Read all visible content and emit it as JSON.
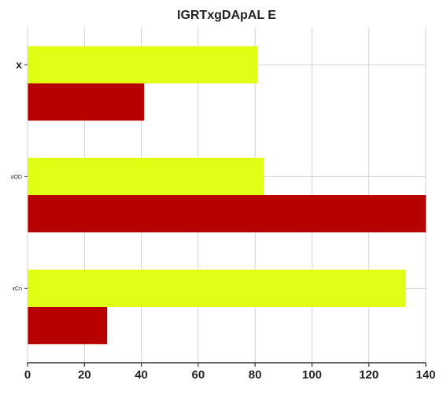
{
  "chart_data": {
    "type": "bar",
    "orientation": "horizontal",
    "title": "IGRTxgDApAL  E",
    "xlabel": "",
    "ylabel": "",
    "categories": [
      "x",
      "oOD",
      "xCn"
    ],
    "series": [
      {
        "values": [
          81,
          83,
          133
        ],
        "color": "#e1ff14"
      },
      {
        "values": [
          41,
          140,
          28
        ],
        "color": "#b70000"
      }
    ],
    "xlim": [
      0,
      140
    ],
    "xticks": [
      0,
      20,
      40,
      60,
      80,
      100,
      120,
      140
    ],
    "grid": true,
    "legend": "none"
  }
}
